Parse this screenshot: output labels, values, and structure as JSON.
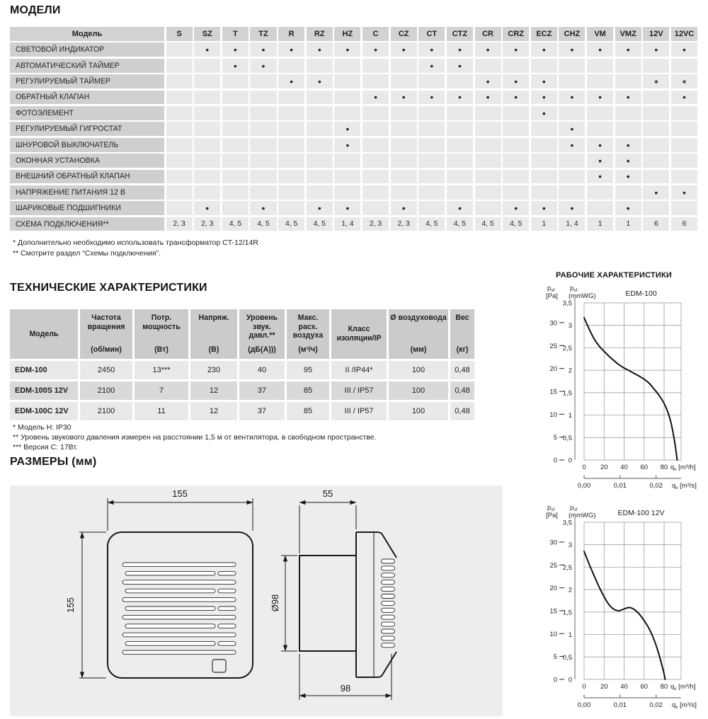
{
  "headings": {
    "models": "МОДЕЛИ",
    "tech": "ТЕХНИЧЕСКИЕ ХАРАКТЕРИСТИКИ",
    "dims": "РАЗМЕРЫ (мм)",
    "charts": "РАБОЧИЕ ХАРАКТЕРИСТИКИ"
  },
  "models_table": {
    "corner": "Модель",
    "columns": [
      "S",
      "SZ",
      "T",
      "TZ",
      "R",
      "RZ",
      "HZ",
      "C",
      "CZ",
      "CT",
      "CTZ",
      "CR",
      "CRZ",
      "ECZ",
      "CHZ",
      "VM",
      "VMZ",
      "12V",
      "12VC"
    ],
    "rows": [
      {
        "label": "СВЕТОВОЙ ИНДИКАТОР",
        "marks": [
          "",
          "•",
          "•",
          "•",
          "•",
          "•",
          "•",
          "•",
          "•",
          "•",
          "•",
          "•",
          "•",
          "•",
          "•",
          "•",
          "•",
          "•",
          "•"
        ]
      },
      {
        "label": "АВТОМАТИЧЕСКИЙ ТАЙМЕР",
        "marks": [
          "",
          "",
          "•",
          "•",
          "",
          "",
          "",
          "",
          "",
          "•",
          "•",
          "",
          "",
          "",
          "",
          "",
          "",
          "",
          ""
        ]
      },
      {
        "label": "РЕГУЛИРУЕМЫЙ ТАЙМЕР",
        "marks": [
          "",
          "",
          "",
          "",
          "•",
          "•",
          "",
          "",
          "",
          "",
          "",
          "•",
          "•",
          "•",
          "",
          "",
          "",
          "*",
          "*"
        ]
      },
      {
        "label": "ОБРАТНЫЙ КЛАПАН",
        "marks": [
          "",
          "",
          "",
          "",
          "",
          "",
          "",
          "•",
          "•",
          "•",
          "•",
          "•",
          "•",
          "•",
          "•",
          "•",
          "•",
          "",
          "•"
        ]
      },
      {
        "label": "ФОТОЭЛЕМЕНТ",
        "marks": [
          "",
          "",
          "",
          "",
          "",
          "",
          "",
          "",
          "",
          "",
          "",
          "",
          "",
          "•",
          "",
          "",
          "",
          "",
          ""
        ]
      },
      {
        "label": "РЕГУЛИРУЕМЫЙ ГИГРОСТАТ",
        "marks": [
          "",
          "",
          "",
          "",
          "",
          "",
          "•",
          "",
          "",
          "",
          "",
          "",
          "",
          "",
          "•",
          "",
          "",
          "",
          ""
        ]
      },
      {
        "label": "ШНУРОВОЙ ВЫКЛЮЧАТЕЛЬ",
        "marks": [
          "",
          "",
          "",
          "",
          "",
          "",
          "•",
          "",
          "",
          "",
          "",
          "",
          "",
          "",
          "•",
          "•",
          "•",
          "",
          ""
        ]
      },
      {
        "label": "ОКОННАЯ УСТАНОВКА",
        "marks": [
          "",
          "",
          "",
          "",
          "",
          "",
          "",
          "",
          "",
          "",
          "",
          "",
          "",
          "",
          "",
          "•",
          "•",
          "",
          ""
        ]
      },
      {
        "label": "ВНЕШНИЙ ОБРАТНЫЙ КЛАПАН",
        "marks": [
          "",
          "",
          "",
          "",
          "",
          "",
          "",
          "",
          "",
          "",
          "",
          "",
          "",
          "",
          "",
          "•",
          "•",
          "",
          ""
        ]
      },
      {
        "label": "НАПРЯЖЕНИЕ ПИТАНИЯ 12 В",
        "marks": [
          "",
          "",
          "",
          "",
          "",
          "",
          "",
          "",
          "",
          "",
          "",
          "",
          "",
          "",
          "",
          "",
          "",
          "•",
          "•"
        ]
      },
      {
        "label": "ШАРИКОВЫЕ ПОДШИПНИКИ",
        "marks": [
          "",
          "•",
          "",
          "•",
          "",
          "•",
          "•",
          "",
          "•",
          "",
          "•",
          "",
          "•",
          "•",
          "•",
          "",
          "•",
          "",
          ""
        ]
      },
      {
        "label": "СХЕМА ПОДКЛЮЧЕНИЯ**",
        "marks": [
          "2, 3",
          "2, 3",
          "4, 5",
          "4, 5",
          "4, 5",
          "4, 5",
          "1, 4",
          "2, 3",
          "2, 3",
          "4, 5",
          "4, 5",
          "4, 5",
          "4, 5",
          "1",
          "1, 4",
          "1",
          "1",
          "6",
          "6"
        ]
      }
    ]
  },
  "models_footnotes": [
    "* Дополнительно необходимо использовать трансформатор CT-12/14R",
    "** Смотрите раздел “Схемы подключения”."
  ],
  "tech_table": {
    "headers": [
      {
        "title": "Модель",
        "unit": ""
      },
      {
        "title": "Частота вращения",
        "unit": "(об/мин)"
      },
      {
        "title": "Потр. мощность",
        "unit": "(Вт)"
      },
      {
        "title": "Напряж.",
        "unit": "(В)"
      },
      {
        "title": "Уровень звук. давл.**",
        "unit": "(дБ(А)))"
      },
      {
        "title": "Макс. расх. воздуха",
        "unit": "(м³/ч)"
      },
      {
        "title": "Класс изоляции/IP",
        "unit": ""
      },
      {
        "title": "Ø воздуховода",
        "unit": "(мм)"
      },
      {
        "title": "Вес",
        "unit": "(кг)"
      }
    ],
    "rows": [
      [
        "EDM-100",
        "2450",
        "13***",
        "230",
        "40",
        "95",
        "II /IP44*",
        "100",
        "0,48"
      ],
      [
        "EDM-100S 12V",
        "2100",
        "7",
        "12",
        "37",
        "85",
        "III / IP57",
        "100",
        "0,48"
      ],
      [
        "EDM-100C 12V",
        "2100",
        "11",
        "12",
        "37",
        "85",
        "III / IP57",
        "100",
        "0,48"
      ]
    ]
  },
  "tech_footnotes": [
    "* Модель H: IP30",
    "** Уровень звукового давления измерен на расстоянии 1,5 м от вентилятора, в свободном пространстве.",
    "*** Версия C: 17Вт."
  ],
  "dimensions": {
    "front_width": "155",
    "front_height": "155",
    "side_depth": "55",
    "duct_diameter": "Ø98",
    "total_depth": "98"
  },
  "chart_data": [
    {
      "type": "line",
      "title": "EDM-100",
      "ylabel_left_line1": {
        "base": "p",
        "sub": "sf",
        "rest": ""
      },
      "ylabel_left_line2": "[Pa]",
      "ylabel_right_line1": {
        "base": "p",
        "sub": "sf",
        "rest": ""
      },
      "ylabel_right_line2": "(mmWG)",
      "xlabel_primary": {
        "base": "q",
        "sub": "v",
        "rest": " [m³/h]"
      },
      "xlabel_secondary": {
        "base": "q",
        "sub": "v",
        "rest": " [m³/s]"
      },
      "x_ticks_m3h": [
        0,
        20,
        40,
        60,
        80
      ],
      "x_axis_max": 97,
      "y_ticks_mmwg": [
        0,
        0.5,
        1,
        1.5,
        2,
        2.5,
        3,
        3.5
      ],
      "y_ticks_pa": [
        0,
        5,
        10,
        15,
        20,
        25,
        30
      ],
      "x_ticks_m3s": [
        {
          "value_m3h": 0,
          "label": "0,00"
        },
        {
          "value_m3h": 36,
          "label": "0,01"
        },
        {
          "value_m3h": 72,
          "label": "0,02"
        }
      ],
      "curve_m3h_mmwg": [
        [
          0,
          3.17
        ],
        [
          5,
          2.92
        ],
        [
          10,
          2.7
        ],
        [
          15,
          2.54
        ],
        [
          20,
          2.42
        ],
        [
          25,
          2.31
        ],
        [
          30,
          2.21
        ],
        [
          35,
          2.12
        ],
        [
          40,
          2.05
        ],
        [
          45,
          1.99
        ],
        [
          50,
          1.93
        ],
        [
          55,
          1.87
        ],
        [
          60,
          1.8
        ],
        [
          65,
          1.71
        ],
        [
          70,
          1.58
        ],
        [
          75,
          1.44
        ],
        [
          80,
          1.26
        ],
        [
          84,
          1.05
        ],
        [
          87,
          0.82
        ],
        [
          90,
          0.48
        ],
        [
          92,
          0.18
        ],
        [
          93,
          0
        ]
      ]
    },
    {
      "type": "line",
      "title": "EDM-100 12V",
      "ylabel_left_line1": {
        "base": "p",
        "sub": "sf",
        "rest": ""
      },
      "ylabel_left_line2": "[Pa]",
      "ylabel_right_line1": {
        "base": "p",
        "sub": "sf",
        "rest": ""
      },
      "ylabel_right_line2": "(mmWG)",
      "xlabel_primary": {
        "base": "q",
        "sub": "v",
        "rest": " [m³/h]"
      },
      "xlabel_secondary": {
        "base": "q",
        "sub": "v",
        "rest": " [m³/s]"
      },
      "x_ticks_m3h": [
        0,
        20,
        40,
        60,
        80
      ],
      "x_axis_max": 97,
      "y_ticks_mmwg": [
        0,
        0.5,
        1,
        1.5,
        2,
        2.5,
        3,
        3.5
      ],
      "y_ticks_pa": [
        0,
        5,
        10,
        15,
        20,
        25,
        30
      ],
      "x_ticks_m3s": [
        {
          "value_m3h": 0,
          "label": "0,00"
        },
        {
          "value_m3h": 36,
          "label": "0,01"
        },
        {
          "value_m3h": 72,
          "label": "0,02"
        }
      ],
      "curve_m3h_mmwg": [
        [
          0,
          2.85
        ],
        [
          5,
          2.57
        ],
        [
          10,
          2.31
        ],
        [
          15,
          2.06
        ],
        [
          20,
          1.84
        ],
        [
          25,
          1.66
        ],
        [
          30,
          1.56
        ],
        [
          35,
          1.53
        ],
        [
          40,
          1.57
        ],
        [
          45,
          1.6
        ],
        [
          50,
          1.56
        ],
        [
          55,
          1.46
        ],
        [
          60,
          1.31
        ],
        [
          65,
          1.13
        ],
        [
          70,
          0.88
        ],
        [
          74,
          0.62
        ],
        [
          77,
          0.38
        ],
        [
          80,
          0.12
        ],
        [
          81,
          0
        ]
      ]
    }
  ],
  "colors": {
    "matrix_header_bg": "#d2d2d2",
    "matrix_label_bg": "#cfcfcf",
    "matrix_cell_bg": "#e9e9e9",
    "tech_header_bg": "#cbcbcb",
    "tech_row_alt_bg": "#d9d9d9",
    "panel_bg": "#ededed",
    "ink": "#1a1a1a"
  }
}
